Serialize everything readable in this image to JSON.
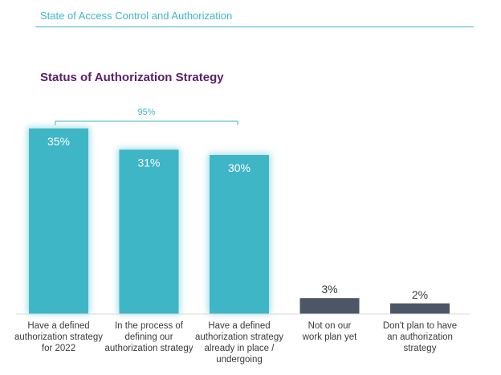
{
  "header": {
    "title": "State of Access Control and Authorization"
  },
  "chart_data": {
    "type": "bar",
    "title": "Status of Authorization Strategy",
    "categories": [
      [
        "Have a defined",
        "authorization strategy",
        "for 2022"
      ],
      [
        "In the process of",
        "defining our",
        "authorization strategy"
      ],
      [
        "Have a defined",
        "authorization strategy",
        "already in place /",
        "undergoing"
      ],
      [
        "Not on our",
        "work plan yet"
      ],
      [
        "Don't plan to have",
        "an authorization",
        "strategy"
      ]
    ],
    "values": [
      35,
      31,
      30,
      3,
      2
    ],
    "value_labels": [
      "35%",
      "31%",
      "30%",
      "3%",
      "2%"
    ],
    "colors": [
      "#3fb6c6",
      "#3fb6c6",
      "#3fb6c6",
      "#4d5666",
      "#4d5666"
    ],
    "ylim": [
      0,
      35
    ],
    "bracket": {
      "label": "95%",
      "spans": [
        0,
        2
      ]
    },
    "grid": false
  }
}
